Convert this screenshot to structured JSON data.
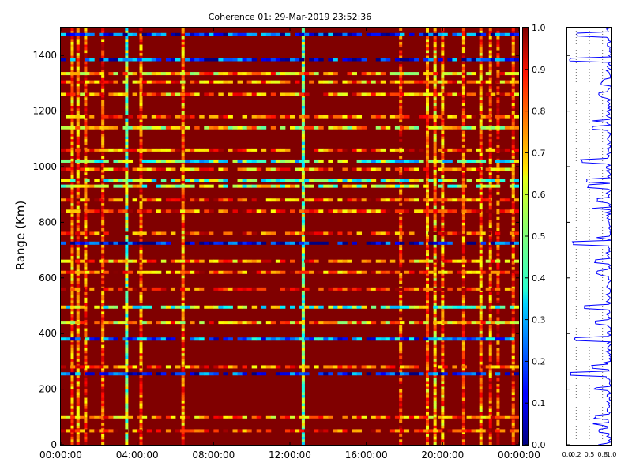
{
  "chart_data": [
    {
      "type": "heatmap",
      "title": "Coherence 01: 29-Mar-2019 23:52:36",
      "xlabel": "",
      "ylabel": "Range (Km)",
      "x_ticks": [
        "00:00:00",
        "04:00:00",
        "08:00:00",
        "12:00:00",
        "16:00:00",
        "20:00:00",
        "00:00:00"
      ],
      "x_range_hours": [
        0,
        24
      ],
      "y_ticks": [
        0,
        200,
        400,
        600,
        800,
        1000,
        1200,
        1400
      ],
      "ylim": [
        0,
        1500
      ],
      "colorbar": {
        "ticks": [
          "0.0",
          "0.1",
          "0.2",
          "0.3",
          "0.4",
          "0.5",
          "0.6",
          "0.7",
          "0.8",
          "0.9",
          "1.0"
        ],
        "range": [
          0,
          1
        ],
        "colormap": "jet"
      },
      "background_value": 1.0,
      "low_coherence_rows_km": [
        {
          "range": 1475,
          "value": 0.15
        },
        {
          "range": 1385,
          "value": 0.15
        },
        {
          "range": 1335,
          "value": 0.7
        },
        {
          "range": 1305,
          "value": 0.75
        },
        {
          "range": 1260,
          "value": 0.75
        },
        {
          "range": 1180,
          "value": 0.8
        },
        {
          "range": 1140,
          "value": 0.65
        },
        {
          "range": 1060,
          "value": 0.8
        },
        {
          "range": 1020,
          "value": 0.45
        },
        {
          "range": 990,
          "value": 0.75
        },
        {
          "range": 950,
          "value": 0.5
        },
        {
          "range": 930,
          "value": 0.55
        },
        {
          "range": 880,
          "value": 0.8
        },
        {
          "range": 840,
          "value": 0.8
        },
        {
          "range": 760,
          "value": 0.85
        },
        {
          "range": 725,
          "value": 0.1
        },
        {
          "range": 660,
          "value": 0.75
        },
        {
          "range": 620,
          "value": 0.8
        },
        {
          "range": 560,
          "value": 0.85
        },
        {
          "range": 495,
          "value": 0.5
        },
        {
          "range": 440,
          "value": 0.7
        },
        {
          "range": 380,
          "value": 0.25
        },
        {
          "range": 280,
          "value": 0.8
        },
        {
          "range": 255,
          "value": 0.15
        },
        {
          "range": 100,
          "value": 0.75
        },
        {
          "range": 50,
          "value": 0.85
        }
      ],
      "low_coherence_columns_hours": [
        {
          "time": 0.6,
          "value": 0.75
        },
        {
          "time": 0.9,
          "value": 0.75
        },
        {
          "time": 1.3,
          "value": 0.8
        },
        {
          "time": 2.2,
          "value": 0.8
        },
        {
          "time": 3.45,
          "value": 0.5
        },
        {
          "time": 4.2,
          "value": 0.8
        },
        {
          "time": 6.4,
          "value": 0.75
        },
        {
          "time": 12.7,
          "value": 0.5
        },
        {
          "time": 17.8,
          "value": 0.85
        },
        {
          "time": 19.2,
          "value": 0.75
        },
        {
          "time": 19.6,
          "value": 0.7
        },
        {
          "time": 20.0,
          "value": 0.75
        },
        {
          "time": 21.1,
          "value": 0.8
        },
        {
          "time": 22.0,
          "value": 0.75
        },
        {
          "time": 22.5,
          "value": 0.8
        },
        {
          "time": 22.9,
          "value": 0.85
        },
        {
          "time": 23.7,
          "value": 0.8
        }
      ]
    },
    {
      "type": "line",
      "x_ticks": [
        "0.0",
        "0.2",
        "0.5",
        "0.8",
        "1.0"
      ],
      "xlim": [
        0,
        1
      ],
      "ylim": [
        0,
        1500
      ],
      "grid_lines_x": [
        0.2,
        0.5,
        0.8
      ],
      "color": "#0000ff",
      "profile_drops_km": [
        {
          "range": 1475,
          "value": 0.2
        },
        {
          "range": 1385,
          "value": 0.05
        },
        {
          "range": 1305,
          "value": 0.75
        },
        {
          "range": 1260,
          "value": 0.7
        },
        {
          "range": 1140,
          "value": 0.55
        },
        {
          "range": 1020,
          "value": 0.3
        },
        {
          "range": 950,
          "value": 0.4
        },
        {
          "range": 930,
          "value": 0.45
        },
        {
          "range": 880,
          "value": 0.65
        },
        {
          "range": 725,
          "value": 0.1
        },
        {
          "range": 660,
          "value": 0.6
        },
        {
          "range": 620,
          "value": 0.65
        },
        {
          "range": 495,
          "value": 0.35
        },
        {
          "range": 440,
          "value": 0.6
        },
        {
          "range": 380,
          "value": 0.15
        },
        {
          "range": 280,
          "value": 0.55
        },
        {
          "range": 255,
          "value": 0.05
        },
        {
          "range": 100,
          "value": 0.6
        },
        {
          "range": 50,
          "value": 0.7
        }
      ]
    }
  ]
}
